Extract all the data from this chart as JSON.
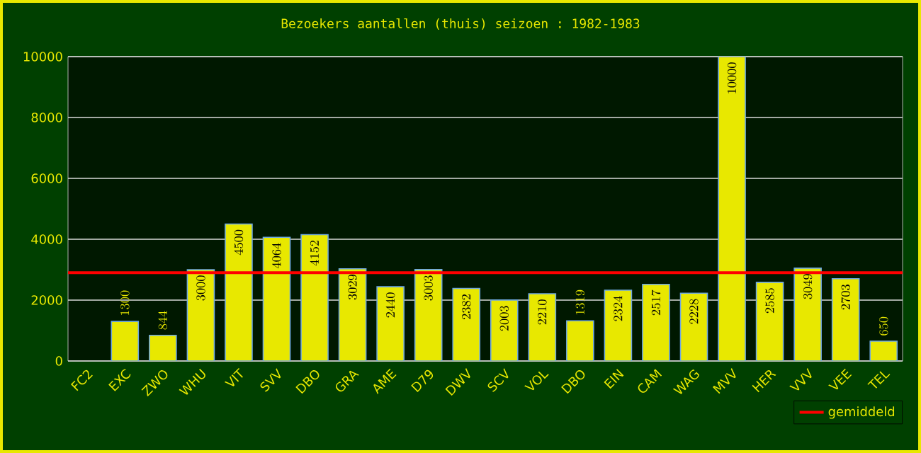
{
  "chart_data": {
    "type": "bar",
    "title": "Bezoekers aantallen (thuis) seizoen : 1982-1983",
    "categories": [
      "FC2",
      "EXC",
      "ZWO",
      "WHU",
      "VIT",
      "SVV",
      "DBO",
      "GRA",
      "AME",
      "D79",
      "DWV",
      "SCV",
      "VOL",
      "DBO",
      "EIN",
      "CAM",
      "WAG",
      "MVV",
      "HER",
      "VVV",
      "VEE",
      "TEL"
    ],
    "values": [
      null,
      1300,
      844,
      3000,
      4500,
      4064,
      4152,
      3029,
      2440,
      3003,
      2382,
      2003,
      2210,
      1319,
      2324,
      2517,
      2228,
      10000,
      2585,
      3049,
      2703,
      650
    ],
    "color": "#e8e800",
    "ylim": [
      0,
      10000
    ],
    "yticks": [
      0,
      2000,
      4000,
      6000,
      8000,
      10000
    ],
    "grid": "y",
    "data_labels": true,
    "legend": "bottom right",
    "ref_lines": [
      {
        "axis": "y",
        "value": 2900,
        "label": "gemiddeld",
        "color": "#ff0000"
      }
    ]
  }
}
